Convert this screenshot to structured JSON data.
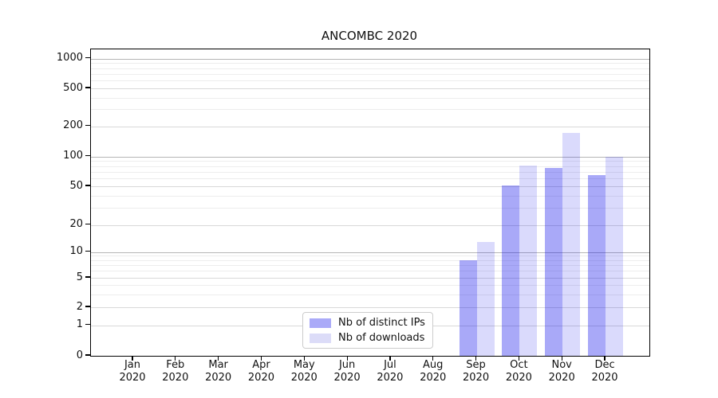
{
  "chart_data": {
    "type": "bar",
    "title": "ANCOMBC 2020",
    "categories": [
      "Jan 2020",
      "Feb 2020",
      "Mar 2020",
      "Apr 2020",
      "May 2020",
      "Jun 2020",
      "Jul 2020",
      "Aug 2020",
      "Sep 2020",
      "Oct 2020",
      "Nov 2020",
      "Dec 2020"
    ],
    "series": [
      {
        "name": "Nb of distinct IPs",
        "color": "#aaaaf8",
        "fill": "rgba(10,10,235,0.35)",
        "values": [
          0,
          0,
          0,
          0,
          0,
          0,
          0,
          0,
          8,
          51,
          76,
          65
        ]
      },
      {
        "name": "Nb of downloads",
        "color": "#dcdcf8",
        "fill": "rgba(10,10,235,0.15)",
        "values": [
          0,
          0,
          0,
          0,
          0,
          0,
          0,
          0,
          13,
          81,
          172,
          100
        ]
      }
    ],
    "y_axis": {
      "scale": "symlog",
      "ticks": [
        0,
        1,
        2,
        5,
        10,
        20,
        50,
        100,
        200,
        500,
        1000
      ],
      "range": [
        0,
        1300
      ]
    },
    "x_axis": {
      "tick_count": 12
    },
    "legend": {
      "position": "inside-bottom-center"
    },
    "grid": {
      "horizontal": true,
      "vertical": false,
      "log_minors": true
    }
  },
  "colors": {
    "bar_dark": "#aaaaf8",
    "bar_light": "#dcdcf8",
    "grid_major": "#b5b5b5",
    "grid_mid": "#d9d9d9",
    "grid_minor": "#ededed",
    "spine": "#000000",
    "legend_border": "#cccccc"
  }
}
